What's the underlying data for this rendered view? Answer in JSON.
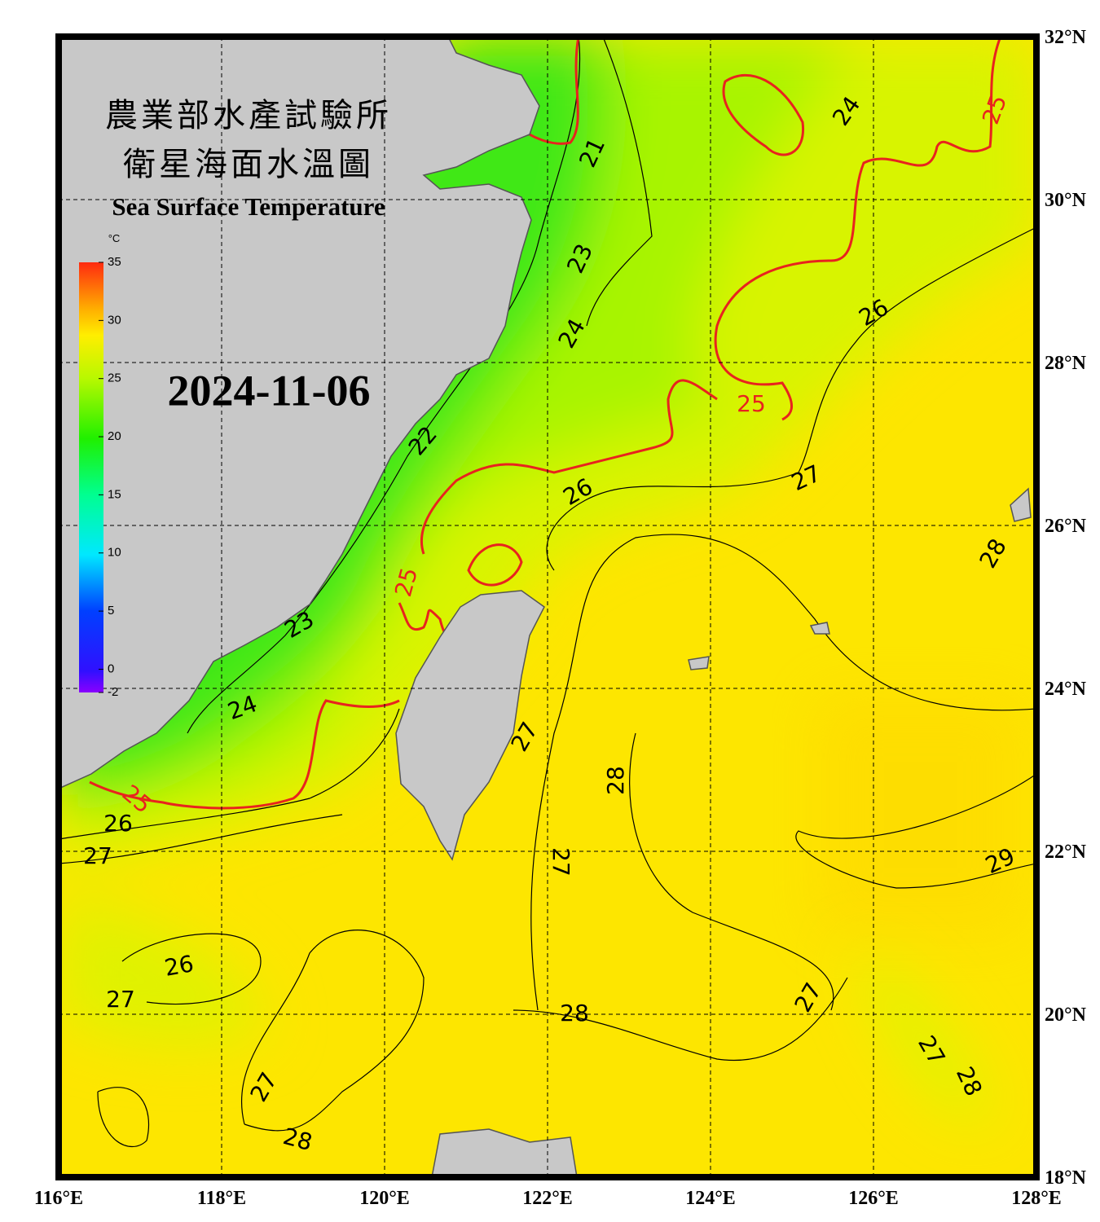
{
  "title_zh_1": "農業部水產試驗所",
  "title_zh_2": "衛星海面水溫圖",
  "title_en": "Sea Surface Temperature",
  "date": "2024-11-06",
  "colorbar": {
    "unit": "°C",
    "ticks": [
      35,
      30,
      25,
      20,
      15,
      10,
      5,
      0,
      -2
    ]
  },
  "longitude_labels": [
    {
      "value": 116,
      "label": "116°E"
    },
    {
      "value": 118,
      "label": "118°E"
    },
    {
      "value": 120,
      "label": "120°E"
    },
    {
      "value": 122,
      "label": "122°E"
    },
    {
      "value": 124,
      "label": "124°E"
    },
    {
      "value": 126,
      "label": "126°E"
    },
    {
      "value": 128,
      "label": "128°E"
    }
  ],
  "latitude_labels": [
    {
      "value": 32,
      "label": "32°N"
    },
    {
      "value": 30,
      "label": "30°N"
    },
    {
      "value": 28,
      "label": "28°N"
    },
    {
      "value": 26,
      "label": "26°N"
    },
    {
      "value": 24,
      "label": "24°N"
    },
    {
      "value": 22,
      "label": "22°N"
    },
    {
      "value": 20,
      "label": "20°N"
    },
    {
      "value": 18,
      "label": "18°N"
    }
  ],
  "contour_labels": [
    {
      "value": 25,
      "color": "#e8231e"
    },
    {
      "value": 25,
      "color": "#e8231e"
    },
    {
      "value": 25,
      "color": "#e8231e"
    },
    {
      "value": 25,
      "color": "#e8231e"
    },
    {
      "value": 21,
      "color": "#000000"
    },
    {
      "value": 23,
      "color": "#000000"
    },
    {
      "value": 24,
      "color": "#000000"
    },
    {
      "value": 24,
      "color": "#000000"
    },
    {
      "value": 26,
      "color": "#000000"
    },
    {
      "value": 27,
      "color": "#000000"
    },
    {
      "value": 26,
      "color": "#000000"
    },
    {
      "value": 22,
      "color": "#000000"
    },
    {
      "value": 23,
      "color": "#000000"
    },
    {
      "value": 24,
      "color": "#000000"
    },
    {
      "value": 28,
      "color": "#000000"
    },
    {
      "value": 27,
      "color": "#000000"
    },
    {
      "value": 28,
      "color": "#000000"
    },
    {
      "value": 26,
      "color": "#000000"
    },
    {
      "value": 27,
      "color": "#000000"
    },
    {
      "value": 27,
      "color": "#000000"
    },
    {
      "value": 29,
      "color": "#000000"
    },
    {
      "value": 26,
      "color": "#000000"
    },
    {
      "value": 27,
      "color": "#000000"
    },
    {
      "value": 28,
      "color": "#000000"
    },
    {
      "value": 27,
      "color": "#000000"
    },
    {
      "value": 27,
      "color": "#000000"
    },
    {
      "value": 28,
      "color": "#000000"
    },
    {
      "value": 27,
      "color": "#000000"
    },
    {
      "value": 28,
      "color": "#000000"
    }
  ]
}
